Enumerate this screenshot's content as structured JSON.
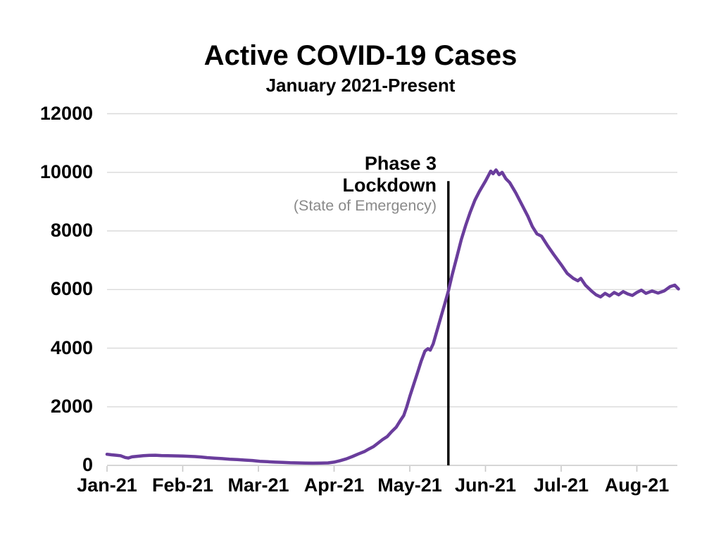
{
  "chart_data": {
    "type": "line",
    "title": "Active COVID-19 Cases",
    "subtitle": "January 2021-Present",
    "xlabel": "",
    "ylabel": "",
    "ylim": [
      0,
      12000
    ],
    "grid": "horizontal",
    "legend": "none",
    "x_unit": "months after Jan-21 tick (0 = Jan-21, 1 = Feb-21, ...)",
    "x_tick_labels": [
      "Jan-21",
      "Feb-21",
      "Mar-21",
      "Apr-21",
      "May-21",
      "Jun-21",
      "Jul-21",
      "Aug-21"
    ],
    "y_ticks_desc": [
      12000,
      10000,
      8000,
      6000,
      4000,
      2000,
      0
    ],
    "y_tick_labels_desc": [
      "12000",
      "10000",
      "8000",
      "6000",
      "4000",
      "2000",
      "0"
    ],
    "series": [
      {
        "name": "Active COVID-19 cases",
        "color": "#6a3d9c",
        "points": [
          [
            0.0,
            380
          ],
          [
            0.06,
            360
          ],
          [
            0.12,
            345
          ],
          [
            0.18,
            330
          ],
          [
            0.24,
            270
          ],
          [
            0.28,
            250
          ],
          [
            0.33,
            290
          ],
          [
            0.4,
            310
          ],
          [
            0.48,
            330
          ],
          [
            0.56,
            340
          ],
          [
            0.64,
            345
          ],
          [
            0.72,
            335
          ],
          [
            0.8,
            330
          ],
          [
            0.9,
            325
          ],
          [
            1.0,
            320
          ],
          [
            1.08,
            310
          ],
          [
            1.16,
            300
          ],
          [
            1.24,
            285
          ],
          [
            1.32,
            265
          ],
          [
            1.42,
            245
          ],
          [
            1.52,
            230
          ],
          [
            1.62,
            210
          ],
          [
            1.72,
            200
          ],
          [
            1.82,
            180
          ],
          [
            1.92,
            165
          ],
          [
            2.02,
            140
          ],
          [
            2.12,
            125
          ],
          [
            2.22,
            110
          ],
          [
            2.32,
            100
          ],
          [
            2.42,
            90
          ],
          [
            2.52,
            85
          ],
          [
            2.62,
            78
          ],
          [
            2.72,
            75
          ],
          [
            2.82,
            78
          ],
          [
            2.92,
            85
          ],
          [
            3.0,
            110
          ],
          [
            3.08,
            160
          ],
          [
            3.16,
            220
          ],
          [
            3.24,
            300
          ],
          [
            3.32,
            390
          ],
          [
            3.4,
            470
          ],
          [
            3.46,
            560
          ],
          [
            3.52,
            640
          ],
          [
            3.58,
            760
          ],
          [
            3.64,
            880
          ],
          [
            3.7,
            980
          ],
          [
            3.76,
            1150
          ],
          [
            3.82,
            1300
          ],
          [
            3.88,
            1550
          ],
          [
            3.92,
            1700
          ],
          [
            3.96,
            2000
          ],
          [
            4.0,
            2350
          ],
          [
            4.05,
            2750
          ],
          [
            4.1,
            3150
          ],
          [
            4.15,
            3550
          ],
          [
            4.2,
            3900
          ],
          [
            4.24,
            3980
          ],
          [
            4.27,
            3930
          ],
          [
            4.31,
            4150
          ],
          [
            4.36,
            4600
          ],
          [
            4.41,
            5050
          ],
          [
            4.46,
            5500
          ],
          [
            4.51,
            5950
          ],
          [
            4.56,
            6500
          ],
          [
            4.62,
            7100
          ],
          [
            4.68,
            7700
          ],
          [
            4.74,
            8200
          ],
          [
            4.8,
            8650
          ],
          [
            4.86,
            9050
          ],
          [
            4.92,
            9350
          ],
          [
            5.0,
            9700
          ],
          [
            5.07,
            10040
          ],
          [
            5.1,
            9950
          ],
          [
            5.14,
            10080
          ],
          [
            5.18,
            9920
          ],
          [
            5.22,
            10000
          ],
          [
            5.27,
            9780
          ],
          [
            5.32,
            9650
          ],
          [
            5.4,
            9300
          ],
          [
            5.48,
            8900
          ],
          [
            5.56,
            8500
          ],
          [
            5.62,
            8150
          ],
          [
            5.68,
            7900
          ],
          [
            5.74,
            7820
          ],
          [
            5.82,
            7500
          ],
          [
            5.9,
            7200
          ],
          [
            6.0,
            6850
          ],
          [
            6.08,
            6550
          ],
          [
            6.16,
            6380
          ],
          [
            6.22,
            6300
          ],
          [
            6.26,
            6380
          ],
          [
            6.32,
            6150
          ],
          [
            6.4,
            5950
          ],
          [
            6.46,
            5820
          ],
          [
            6.52,
            5750
          ],
          [
            6.58,
            5870
          ],
          [
            6.64,
            5780
          ],
          [
            6.7,
            5900
          ],
          [
            6.76,
            5820
          ],
          [
            6.82,
            5930
          ],
          [
            6.88,
            5850
          ],
          [
            6.94,
            5800
          ],
          [
            7.0,
            5900
          ],
          [
            7.06,
            5980
          ],
          [
            7.12,
            5870
          ],
          [
            7.2,
            5950
          ],
          [
            7.28,
            5880
          ],
          [
            7.36,
            5950
          ],
          [
            7.44,
            6100
          ],
          [
            7.5,
            6150
          ],
          [
            7.55,
            6020
          ]
        ]
      }
    ],
    "annotation": {
      "text_lines": [
        "Phase 3",
        "Lockdown",
        "(State of Emergency)"
      ],
      "x_months": 4.51,
      "marker_top_value": 9700,
      "marker_bottom_value": 0
    },
    "colors": {
      "line": "#6a3d9c",
      "grid": "#dadada",
      "axis": "#c8c8c8",
      "marker_line": "#000000",
      "annotation_primary": "#000000",
      "annotation_secondary": "#8a8a8a",
      "text": "#000000",
      "background": "#ffffff"
    }
  }
}
